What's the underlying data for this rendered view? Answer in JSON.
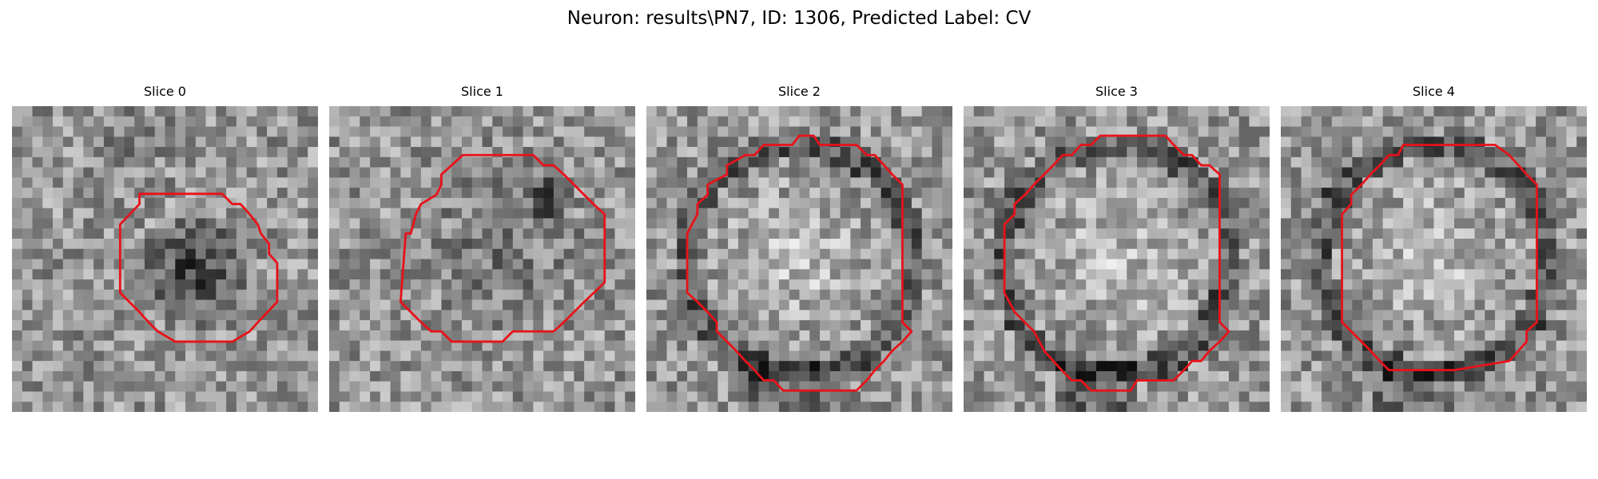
{
  "figure": {
    "title": "Neuron: results\\PN7, ID: 1306, Predicted Label: CV"
  },
  "panels": [
    {
      "title": "Slice 0",
      "pattern": "dark-blob"
    },
    {
      "title": "Slice 1",
      "pattern": "large-dim"
    },
    {
      "title": "Slice 2",
      "pattern": "bright-ring"
    },
    {
      "title": "Slice 3",
      "pattern": "bright-ring"
    },
    {
      "title": "Slice 4",
      "pattern": "bright-ring"
    }
  ],
  "colors": {
    "contour": "#e8121a",
    "background": "#ffffff"
  }
}
